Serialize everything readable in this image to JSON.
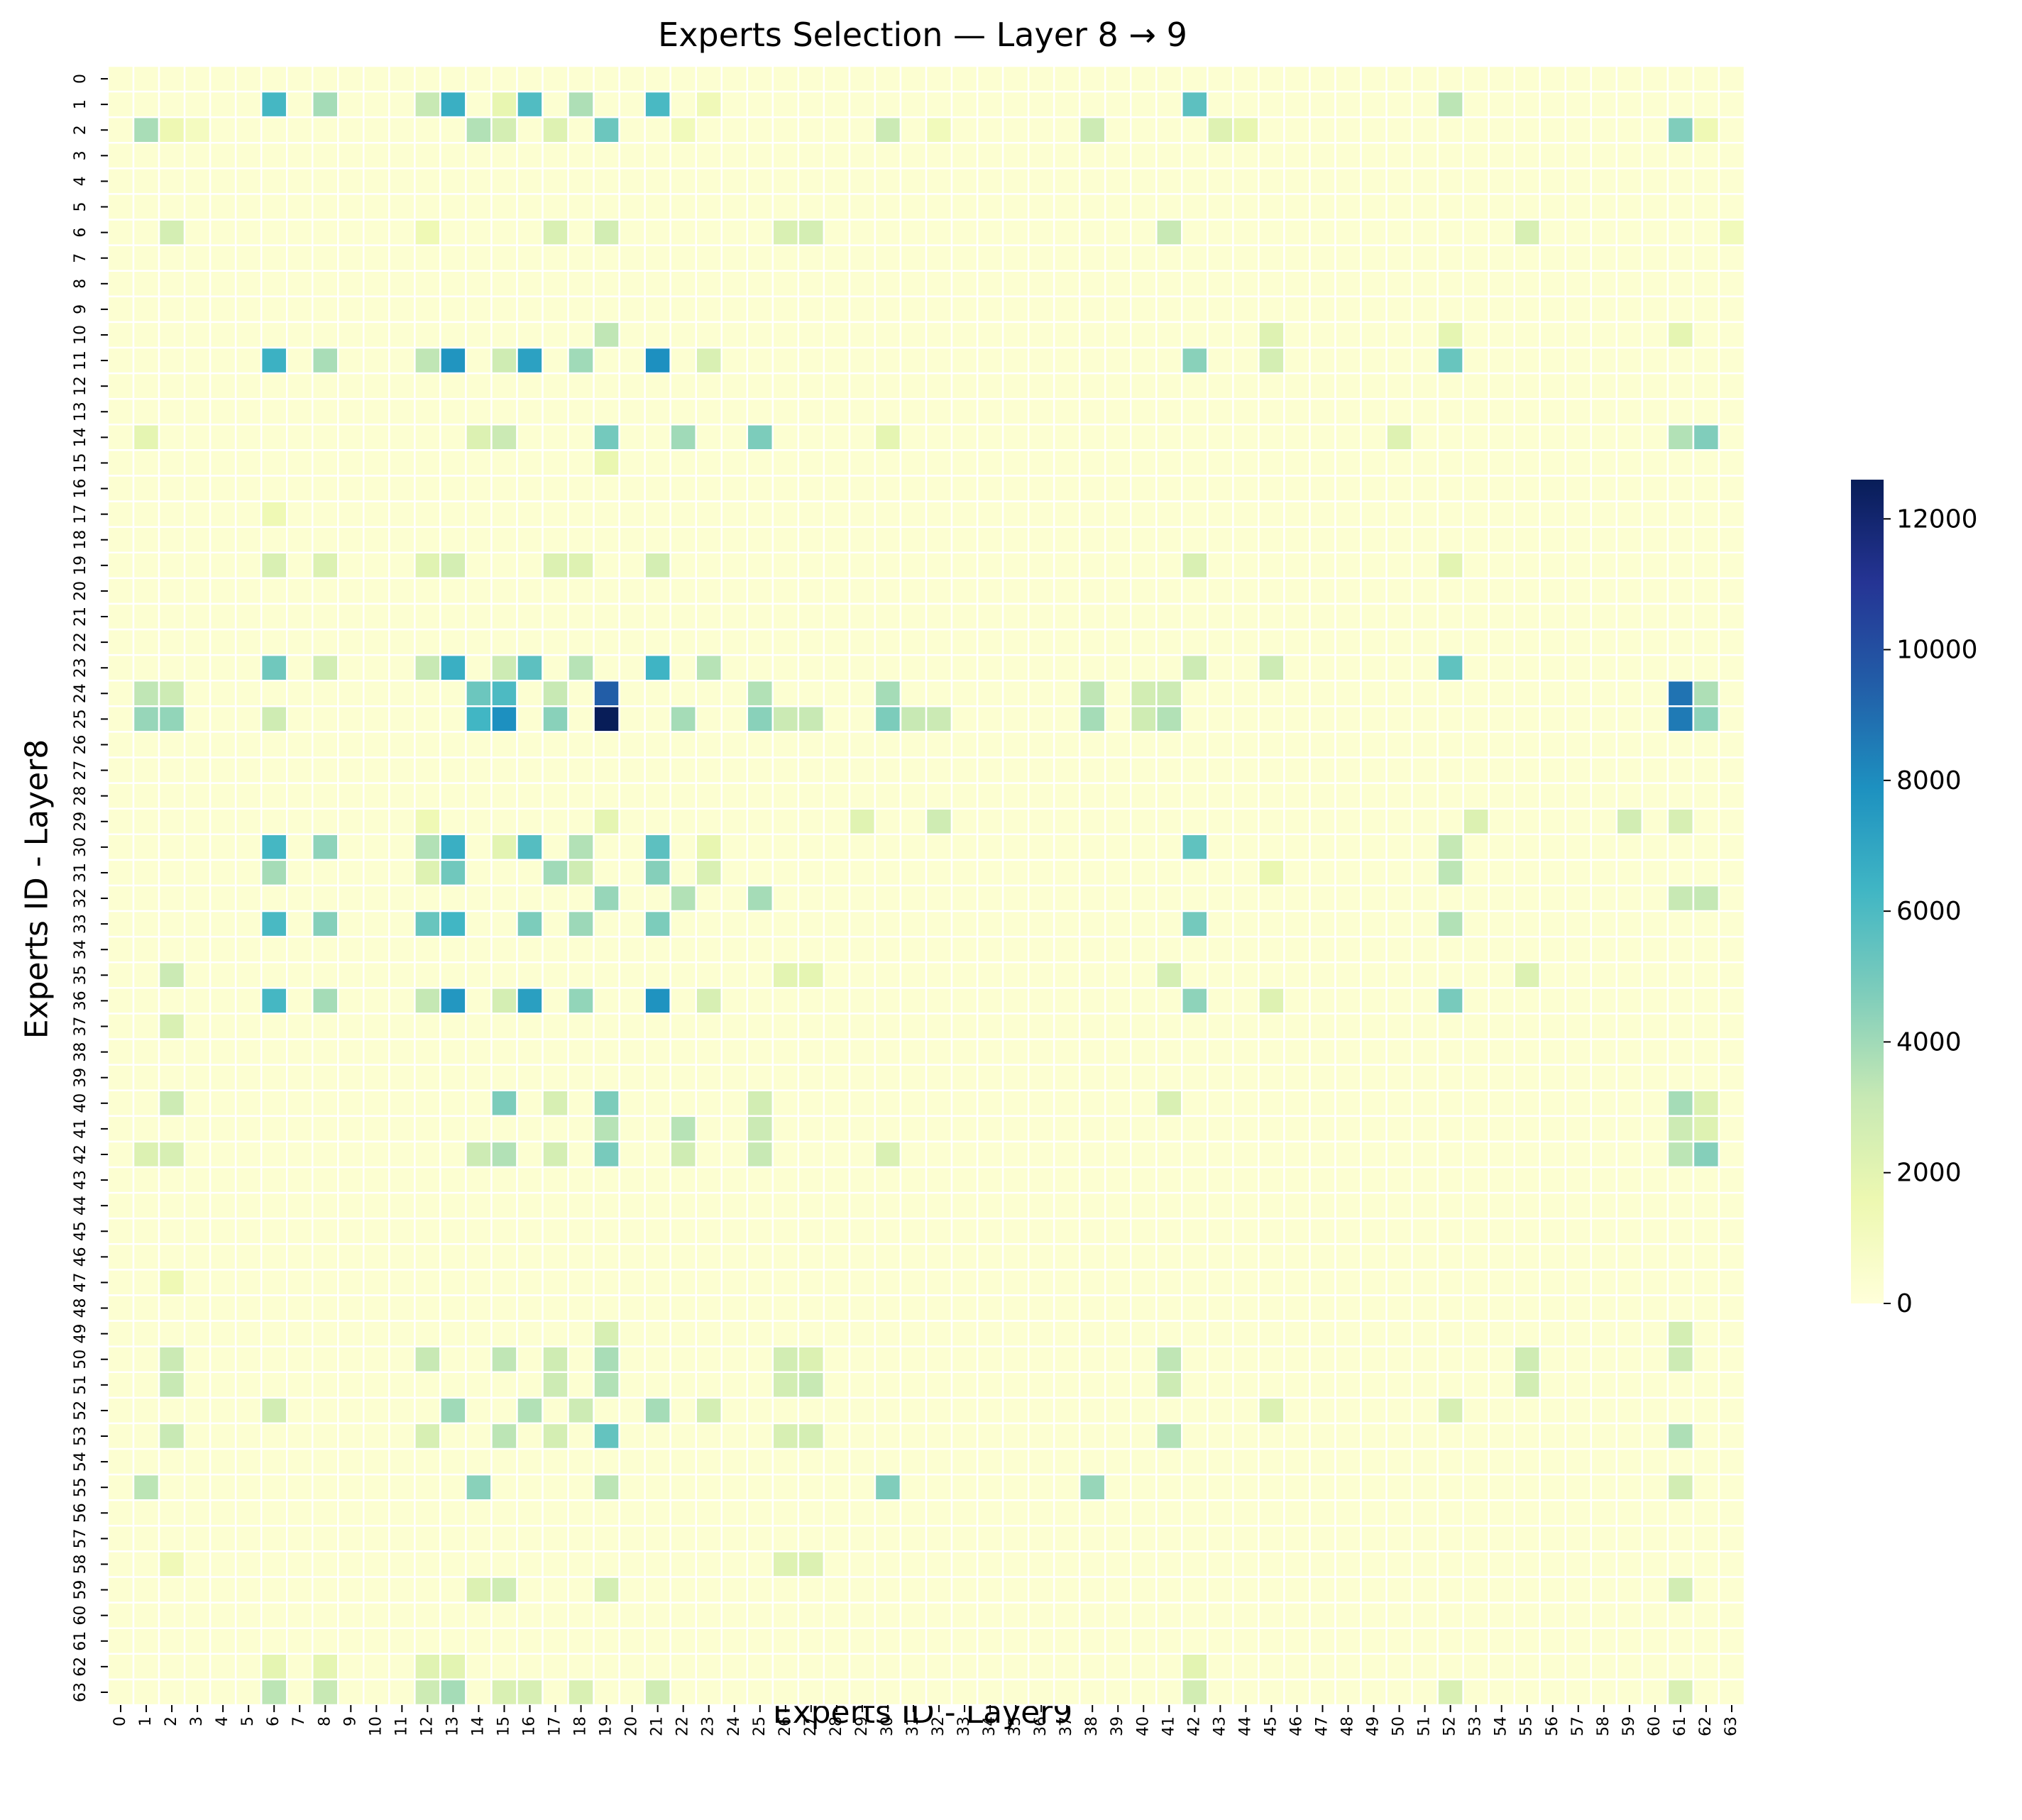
{
  "chart_data": {
    "type": "heatmap",
    "title": "Experts Selection — Layer 8 → 9",
    "xlabel": "Experts ID - Layer9",
    "ylabel": "Experts ID - Layer8",
    "x_ticks": [
      "0",
      "1",
      "2",
      "3",
      "4",
      "5",
      "6",
      "7",
      "8",
      "9",
      "10",
      "11",
      "12",
      "13",
      "14",
      "15",
      "16",
      "17",
      "18",
      "19",
      "20",
      "21",
      "22",
      "23",
      "24",
      "25",
      "26",
      "27",
      "28",
      "29",
      "30",
      "31",
      "32",
      "33",
      "34",
      "35",
      "36",
      "37",
      "38",
      "39",
      "40",
      "41",
      "42",
      "43",
      "44",
      "45",
      "46",
      "47",
      "48",
      "49",
      "50",
      "51",
      "52",
      "53",
      "54",
      "55",
      "56",
      "57",
      "58",
      "59",
      "60",
      "61",
      "62",
      "63"
    ],
    "y_ticks": [
      "0",
      "1",
      "2",
      "3",
      "4",
      "5",
      "6",
      "7",
      "8",
      "9",
      "10",
      "11",
      "12",
      "13",
      "14",
      "15",
      "16",
      "17",
      "18",
      "19",
      "20",
      "21",
      "22",
      "23",
      "24",
      "25",
      "26",
      "27",
      "28",
      "29",
      "30",
      "31",
      "32",
      "33",
      "34",
      "35",
      "36",
      "37",
      "38",
      "39",
      "40",
      "41",
      "42",
      "43",
      "44",
      "45",
      "46",
      "47",
      "48",
      "49",
      "50",
      "51",
      "52",
      "53",
      "54",
      "55",
      "56",
      "57",
      "58",
      "59",
      "60",
      "61",
      "62",
      "63"
    ],
    "colormap": "YlGnBu",
    "vmin": 0,
    "vmax": 12600,
    "colorbar_ticks": [
      0,
      2000,
      4000,
      6000,
      8000,
      10000,
      12000
    ],
    "colorbar_tick_labels": [
      "0",
      "2000",
      "4000",
      "6000",
      "8000",
      "10000",
      "12000"
    ],
    "grid": false,
    "default_value": 300,
    "cells": {
      "1": {
        "6": 6200,
        "8": 3900,
        "12": 3100,
        "13": 6600,
        "15": 1800,
        "16": 5900,
        "18": 3700,
        "21": 6100,
        "23": 1300,
        "42": 5600,
        "52": 3400
      },
      "2": {
        "1": 3800,
        "2": 1500,
        "3": 1000,
        "14": 3600,
        "15": 2600,
        "17": 2200,
        "19": 5200,
        "22": 1200,
        "30": 3000,
        "32": 1200,
        "38": 2900,
        "43": 2200,
        "44": 1800,
        "61": 4700,
        "62": 1400
      },
      "6": {
        "2": 2600,
        "12": 1400,
        "17": 2400,
        "19": 2700,
        "26": 2400,
        "27": 2600,
        "41": 3100,
        "55": 2500,
        "63": 1200
      },
      "10": {
        "19": 3300,
        "45": 2200,
        "52": 1900,
        "61": 1900
      },
      "11": {
        "6": 6500,
        "8": 3800,
        "12": 3300,
        "13": 7700,
        "15": 2800,
        "16": 7200,
        "18": 4000,
        "21": 7900,
        "23": 2400,
        "42": 4500,
        "45": 2600,
        "52": 5300
      },
      "14": {
        "1": 1900,
        "14": 2300,
        "15": 3000,
        "19": 5000,
        "22": 4000,
        "25": 4800,
        "30": 1900,
        "50": 2200,
        "61": 3600,
        "62": 4700
      },
      "15": {
        "19": 1700
      },
      "17": {
        "6": 1400
      },
      "19": {
        "6": 2400,
        "8": 2300,
        "12": 2100,
        "13": 2600,
        "17": 2300,
        "18": 2200,
        "21": 2600,
        "42": 2400,
        "52": 2000
      },
      "23": {
        "6": 5100,
        "8": 2700,
        "12": 3100,
        "13": 6600,
        "15": 2900,
        "16": 5600,
        "18": 3500,
        "21": 6400,
        "23": 3500,
        "42": 2900,
        "45": 2900,
        "52": 5500
      },
      "24": {
        "1": 3300,
        "2": 2900,
        "14": 5200,
        "15": 6000,
        "17": 3100,
        "19": 9500,
        "25": 3600,
        "30": 3900,
        "38": 3300,
        "40": 2700,
        "41": 2900,
        "61": 8800,
        "62": 3700
      },
      "25": {
        "1": 4200,
        "2": 4300,
        "6": 2800,
        "14": 6300,
        "15": 7900,
        "17": 4500,
        "19": 12600,
        "22": 3900,
        "25": 4500,
        "26": 3000,
        "27": 3100,
        "30": 4800,
        "31": 3100,
        "32": 3000,
        "38": 3900,
        "40": 2800,
        "41": 3600,
        "61": 8600,
        "62": 4400
      },
      "29": {
        "12": 1400,
        "19": 1900,
        "29": 2100,
        "32": 2800,
        "53": 2300,
        "59": 2700,
        "61": 2500
      },
      "30": {
        "6": 6200,
        "8": 4400,
        "12": 3600,
        "13": 6600,
        "15": 2000,
        "16": 5800,
        "18": 3600,
        "21": 5600,
        "23": 1800,
        "42": 5500,
        "52": 3200
      },
      "31": {
        "6": 3900,
        "12": 2200,
        "13": 5100,
        "17": 4000,
        "18": 2800,
        "21": 4600,
        "23": 2400,
        "45": 1700,
        "52": 3400
      },
      "32": {
        "19": 4200,
        "22": 3600,
        "25": 3900,
        "61": 3100,
        "62": 3200
      },
      "33": {
        "6": 6100,
        "8": 4600,
        "12": 5300,
        "13": 6300,
        "16": 4800,
        "18": 4100,
        "21": 4800,
        "42": 5000,
        "52": 3600
      },
      "35": {
        "2": 3000,
        "26": 2000,
        "27": 1900,
        "41": 2600,
        "55": 2300
      },
      "36": {
        "6": 6200,
        "8": 3900,
        "12": 3200,
        "13": 7600,
        "15": 2600,
        "16": 7300,
        "18": 4300,
        "21": 7800,
        "23": 2500,
        "42": 4400,
        "45": 2200,
        "52": 4900
      },
      "37": {
        "2": 2400
      },
      "40": {
        "2": 2900,
        "15": 4800,
        "17": 2500,
        "19": 4800,
        "25": 2700,
        "41": 2400,
        "61": 3900,
        "62": 2300
      },
      "41": {
        "19": 3500,
        "22": 3500,
        "25": 3000,
        "61": 2900,
        "62": 2200
      },
      "42": {
        "1": 2300,
        "2": 2500,
        "14": 2900,
        "15": 3600,
        "17": 2600,
        "19": 4900,
        "22": 2800,
        "25": 3100,
        "30": 2400,
        "61": 3400,
        "62": 4600
      },
      "47": {
        "2": 1400
      },
      "49": {
        "19": 2500,
        "61": 2600
      },
      "50": {
        "2": 3000,
        "12": 3100,
        "15": 3300,
        "17": 2800,
        "19": 3800,
        "26": 2700,
        "27": 2300,
        "41": 3300,
        "55": 2800,
        "61": 2900
      },
      "51": {
        "2": 3100,
        "17": 2900,
        "19": 3600,
        "26": 2700,
        "27": 3100,
        "41": 2900,
        "55": 2700
      },
      "52": {
        "6": 2700,
        "13": 4000,
        "16": 3600,
        "18": 2900,
        "21": 3900,
        "23": 2600,
        "45": 2300,
        "52": 2500
      },
      "53": {
        "2": 3100,
        "12": 2500,
        "15": 3400,
        "17": 2600,
        "19": 5400,
        "26": 2500,
        "27": 2600,
        "41": 3600,
        "61": 3700
      },
      "55": {
        "1": 3400,
        "14": 4500,
        "19": 3400,
        "30": 4700,
        "38": 4200,
        "61": 2700
      },
      "58": {
        "2": 1300,
        "26": 2200,
        "27": 2300
      },
      "59": {
        "14": 2300,
        "15": 2800,
        "19": 2600,
        "61": 2700
      },
      "62": {
        "6": 1900,
        "8": 1900,
        "12": 2100,
        "13": 2000,
        "42": 2000
      },
      "63": {
        "6": 3400,
        "8": 3100,
        "12": 2900,
        "13": 3900,
        "15": 2400,
        "16": 2500,
        "18": 2400,
        "21": 2800,
        "42": 2700,
        "52": 2400,
        "61": 2400
      }
    }
  }
}
